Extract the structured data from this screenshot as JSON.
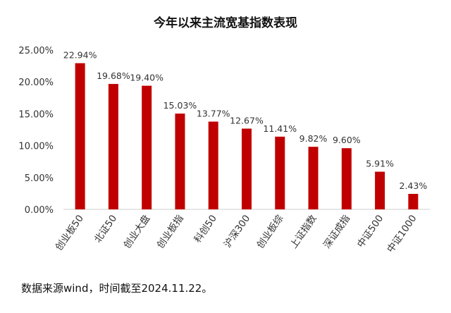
{
  "chart_data": {
    "type": "bar",
    "title": "今年以来主流宽基指数表现",
    "categories": [
      "创业板50",
      "北证50",
      "创业大盘",
      "创业板指",
      "科创50",
      "沪深300",
      "创业板综",
      "上证指数",
      "深证成指",
      "中证500",
      "中证1000"
    ],
    "values": [
      22.94,
      19.68,
      19.4,
      15.03,
      13.77,
      12.67,
      11.41,
      9.82,
      9.6,
      5.91,
      2.43
    ],
    "data_labels": [
      "22.94%",
      "19.68%",
      "19.40%",
      "15.03%",
      "13.77%",
      "12.67%",
      "11.41%",
      "9.82%",
      "9.60%",
      "5.91%",
      "2.43%"
    ],
    "yticks": [
      0,
      5,
      10,
      15,
      20,
      25
    ],
    "ytick_labels": [
      "0.00%",
      "5.00%",
      "10.00%",
      "15.00%",
      "20.00%",
      "25.00%"
    ],
    "ylim": [
      0,
      25
    ],
    "xlabel": "",
    "ylabel": "",
    "grid": false,
    "legend": "none",
    "bar_color": "#c00000"
  },
  "source_note": "数据来源wind，时间截至2024.11.22。"
}
